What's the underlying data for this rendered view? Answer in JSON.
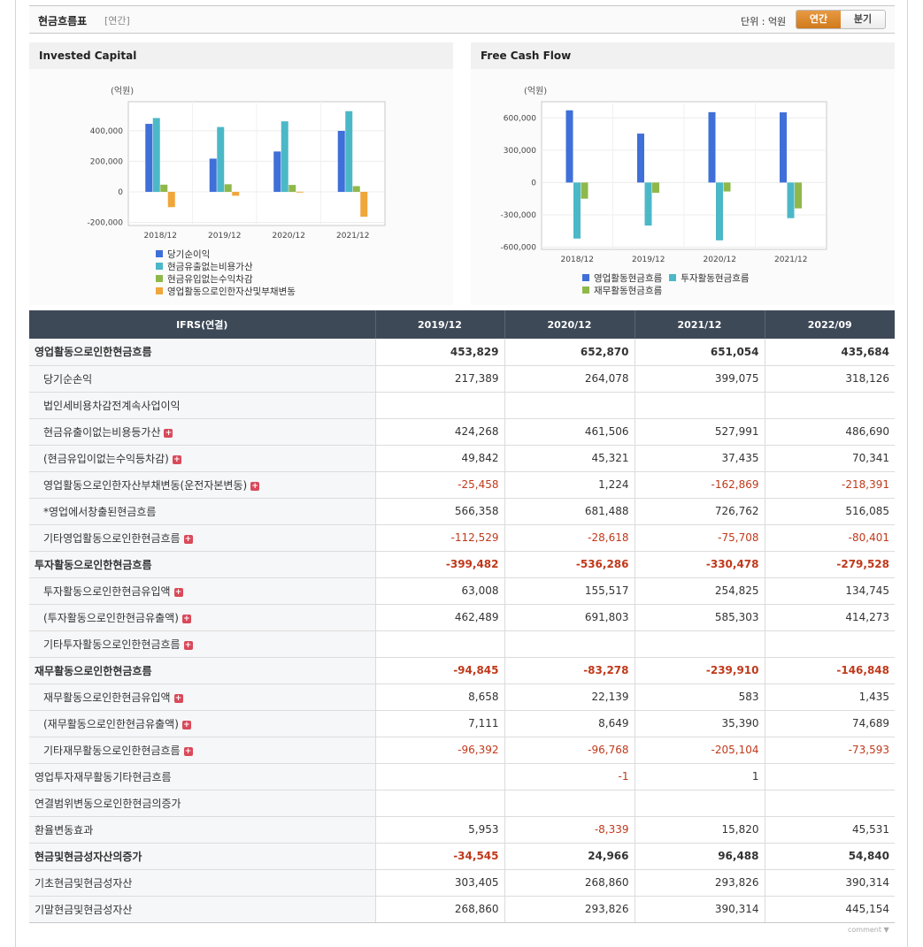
{
  "header": {
    "title": "현금흐름표",
    "subtitle": "[연간]",
    "unit_label": "단위 : 억원",
    "tabs": [
      {
        "label": "연간",
        "active": true
      },
      {
        "label": "분기",
        "active": false
      }
    ]
  },
  "chart_data": [
    {
      "type": "bar",
      "title": "Invested Capital",
      "ylabel": "(억원)",
      "categories": [
        "2018/12",
        "2019/12",
        "2020/12",
        "2021/12"
      ],
      "ylim": [
        -220000,
        590000
      ],
      "yticks": [
        -200000,
        0,
        200000,
        400000
      ],
      "ytick_labels": [
        "-200,000",
        "0",
        "200,000",
        "400,000"
      ],
      "series": [
        {
          "name": "당기순이익",
          "color": "#3f6fd8",
          "values": [
            445000,
            217389,
            264078,
            399075
          ]
        },
        {
          "name": "현금유출없는비용가산",
          "color": "#4bb8c7",
          "values": [
            483000,
            424268,
            461506,
            527991
          ]
        },
        {
          "name": "현금유입없는수익차감",
          "color": "#8fb84a",
          "values": [
            47000,
            49842,
            45321,
            37435
          ]
        },
        {
          "name": "영업활동으로인한자산및부채변동",
          "color": "#f0a63a",
          "values": [
            -100000,
            -25458,
            1224,
            -162869
          ]
        }
      ],
      "legend_position": "bottom-left"
    },
    {
      "type": "bar",
      "title": "Free Cash Flow",
      "ylabel": "(억원)",
      "categories": [
        "2018/12",
        "2019/12",
        "2020/12",
        "2021/12"
      ],
      "ylim": [
        -620000,
        750000
      ],
      "yticks": [
        -600000,
        -300000,
        0,
        300000,
        600000
      ],
      "ytick_labels": [
        "-600,000",
        "-300,000",
        "0",
        "300,000",
        "600,000"
      ],
      "series": [
        {
          "name": "영업활동현금흐름",
          "color": "#3f6fd8",
          "values": [
            670000,
            453829,
            652870,
            651054
          ]
        },
        {
          "name": "투자활동현금흐름",
          "color": "#4bb8c7",
          "values": [
            -520000,
            -399482,
            -536286,
            -330478
          ]
        },
        {
          "name": "재무활동현금흐름",
          "color": "#8fb84a",
          "values": [
            -150000,
            -94845,
            -83278,
            -239910
          ]
        }
      ],
      "legend_position": "bottom-left"
    }
  ],
  "table": {
    "header": [
      "IFRS(연결)",
      "2019/12",
      "2020/12",
      "2021/12",
      "2022/09"
    ],
    "rows": [
      {
        "label": "영업활동으로인한현금흐름",
        "level": "major",
        "plus": false,
        "values": [
          "453,829",
          "652,870",
          "651,054",
          "435,684"
        ]
      },
      {
        "label": "당기순손익",
        "level": "minor",
        "plus": false,
        "values": [
          "217,389",
          "264,078",
          "399,075",
          "318,126"
        ]
      },
      {
        "label": "법인세비용차감전계속사업이익",
        "level": "minor",
        "plus": false,
        "values": [
          "",
          "",
          "",
          ""
        ]
      },
      {
        "label": "현금유출이없는비용등가산",
        "level": "minor",
        "plus": true,
        "values": [
          "424,268",
          "461,506",
          "527,991",
          "486,690"
        ]
      },
      {
        "label": "(현금유입이없는수익등차감)",
        "level": "minor",
        "plus": true,
        "values": [
          "49,842",
          "45,321",
          "37,435",
          "70,341"
        ]
      },
      {
        "label": "영업활동으로인한자산부채변동(운전자본변동)",
        "level": "minor",
        "plus": true,
        "values": [
          "-25,458",
          "1,224",
          "-162,869",
          "-218,391"
        ]
      },
      {
        "label": "*영업에서창출된현금흐름",
        "level": "minor",
        "plus": false,
        "values": [
          "566,358",
          "681,488",
          "726,762",
          "516,085"
        ]
      },
      {
        "label": "기타영업활동으로인한현금흐름",
        "level": "minor",
        "plus": true,
        "values": [
          "-112,529",
          "-28,618",
          "-75,708",
          "-80,401"
        ]
      },
      {
        "label": "투자활동으로인한현금흐름",
        "level": "major",
        "plus": false,
        "values": [
          "-399,482",
          "-536,286",
          "-330,478",
          "-279,528"
        ]
      },
      {
        "label": "투자활동으로인한현금유입액",
        "level": "minor",
        "plus": true,
        "values": [
          "63,008",
          "155,517",
          "254,825",
          "134,745"
        ]
      },
      {
        "label": "(투자활동으로인한현금유출액)",
        "level": "minor",
        "plus": true,
        "values": [
          "462,489",
          "691,803",
          "585,303",
          "414,273"
        ]
      },
      {
        "label": "기타투자활동으로인한현금흐름",
        "level": "minor",
        "plus": true,
        "values": [
          "",
          "",
          "",
          ""
        ]
      },
      {
        "label": "재무활동으로인한현금흐름",
        "level": "major",
        "plus": false,
        "values": [
          "-94,845",
          "-83,278",
          "-239,910",
          "-146,848"
        ]
      },
      {
        "label": "재무활동으로인한현금유입액",
        "level": "minor",
        "plus": true,
        "values": [
          "8,658",
          "22,139",
          "583",
          "1,435"
        ]
      },
      {
        "label": "(재무활동으로인한현금유출액)",
        "level": "minor",
        "plus": true,
        "values": [
          "7,111",
          "8,649",
          "35,390",
          "74,689"
        ]
      },
      {
        "label": "기타재무활동으로인한현금흐름",
        "level": "minor",
        "plus": true,
        "values": [
          "-96,392",
          "-96,768",
          "-205,104",
          "-73,593"
        ]
      },
      {
        "label": "영업투자재무활동기타현금흐름",
        "level": "plain",
        "plus": false,
        "values": [
          "",
          "-1",
          "1",
          ""
        ]
      },
      {
        "label": "연결범위변동으로인한현금의증가",
        "level": "plain",
        "plus": false,
        "values": [
          "",
          "",
          "",
          ""
        ]
      },
      {
        "label": "환율변동효과",
        "level": "plain",
        "plus": false,
        "values": [
          "5,953",
          "-8,339",
          "15,820",
          "45,531"
        ]
      },
      {
        "label": "현금및현금성자산의증가",
        "level": "major",
        "plus": false,
        "values": [
          "-34,545",
          "24,966",
          "96,488",
          "54,840"
        ]
      },
      {
        "label": "기초현금및현금성자산",
        "level": "plain",
        "plus": false,
        "values": [
          "303,405",
          "268,860",
          "293,826",
          "390,314"
        ]
      },
      {
        "label": "기말현금및현금성자산",
        "level": "plain",
        "plus": false,
        "values": [
          "268,860",
          "293,826",
          "390,314",
          "445,154"
        ]
      }
    ]
  },
  "footer": {
    "comment_label": "comment"
  }
}
